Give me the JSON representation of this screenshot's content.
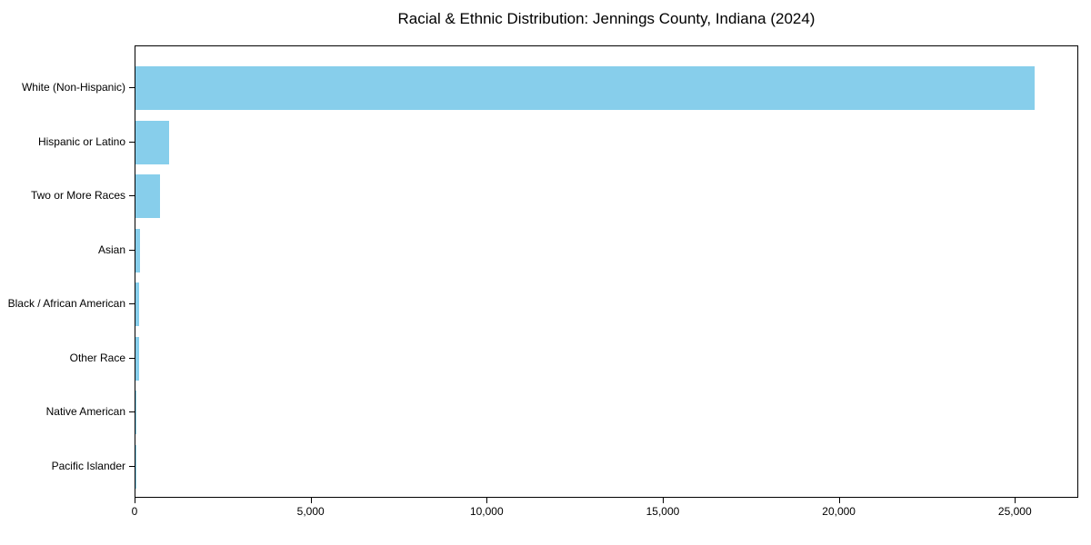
{
  "chart_data": {
    "type": "bar",
    "orientation": "horizontal",
    "title": "Racial & Ethnic Distribution: Jennings County, Indiana (2024)",
    "categories": [
      "White (Non-Hispanic)",
      "Hispanic or Latino",
      "Two or More Races",
      "Asian",
      "Black / African American",
      "Other Race",
      "Native American",
      "Pacific Islander"
    ],
    "values": [
      25540,
      955,
      700,
      130,
      105,
      100,
      35,
      8
    ],
    "xlim": [
      0,
      26800
    ],
    "x_ticks": [
      0,
      5000,
      10000,
      15000,
      20000,
      25000
    ],
    "x_tick_labels": [
      "0",
      "5,000",
      "10,000",
      "15,000",
      "20,000",
      "25,000"
    ],
    "xlabel": "",
    "ylabel": "",
    "grid": false,
    "legend": null,
    "bar_color": "#87CEEB",
    "background_color": "#FFFFFF",
    "axis_color": "#000000",
    "text_color": "#000000"
  }
}
